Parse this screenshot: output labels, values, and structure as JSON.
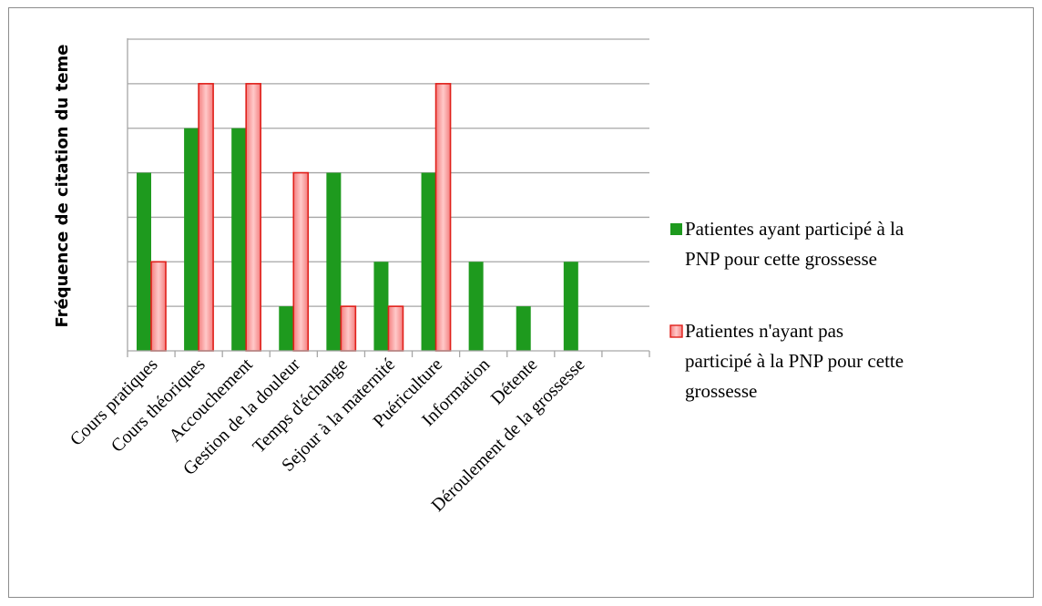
{
  "chart_data": {
    "type": "bar",
    "title": "",
    "xlabel": "",
    "ylabel": "Fréquence de citation du teme",
    "ylim": [
      0,
      7
    ],
    "grid": true,
    "legend_position": "right",
    "categories": [
      "Cours pratiques",
      "Cours théoriques",
      "Accouchement",
      "Gestion de la douleur",
      "Temps d'échange",
      "Sejour à la maternité",
      "Puériculture",
      "Information",
      "Détente",
      "Déroulement de la grossesse",
      ""
    ],
    "series": [
      {
        "name": "Patientes ayant participé à la PNP pour cette grossesse",
        "legend_lines": [
          "Patientes ayant participé à la",
          "PNP pour cette grossesse"
        ],
        "color": "#1e9a1e",
        "values": [
          4,
          5,
          5,
          1,
          4,
          2,
          4,
          2,
          1,
          2,
          0
        ]
      },
      {
        "name": "Patientes n'ayant pas participé à la PNP pour cette grossesse",
        "legend_lines": [
          "Patientes n'ayant pas",
          "participé à la PNP pour cette",
          "grossesse"
        ],
        "color": "#f59a9a",
        "border_color": "#e0201a",
        "values": [
          2,
          6,
          6,
          4,
          1,
          1,
          6,
          0,
          0,
          0,
          0
        ]
      }
    ]
  }
}
